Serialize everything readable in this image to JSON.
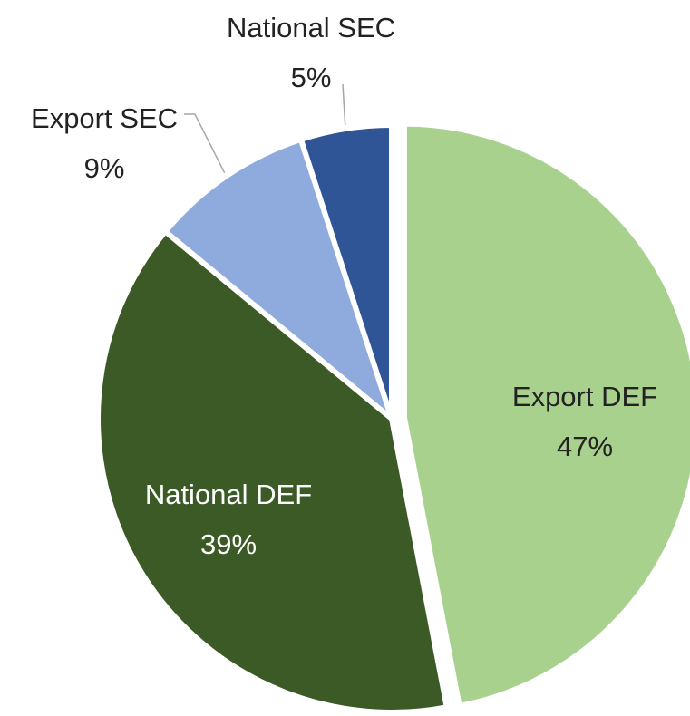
{
  "chart_data": {
    "type": "pie",
    "categories": [
      "Export DEF",
      "National DEF",
      "Export SEC",
      "National SEC"
    ],
    "values": [
      47,
      39,
      9,
      5
    ],
    "value_labels": [
      "47%",
      "39%",
      "9%",
      "5%"
    ],
    "colors": [
      "#a9d18e",
      "#3b5a25",
      "#8faadc",
      "#2f5597"
    ]
  }
}
